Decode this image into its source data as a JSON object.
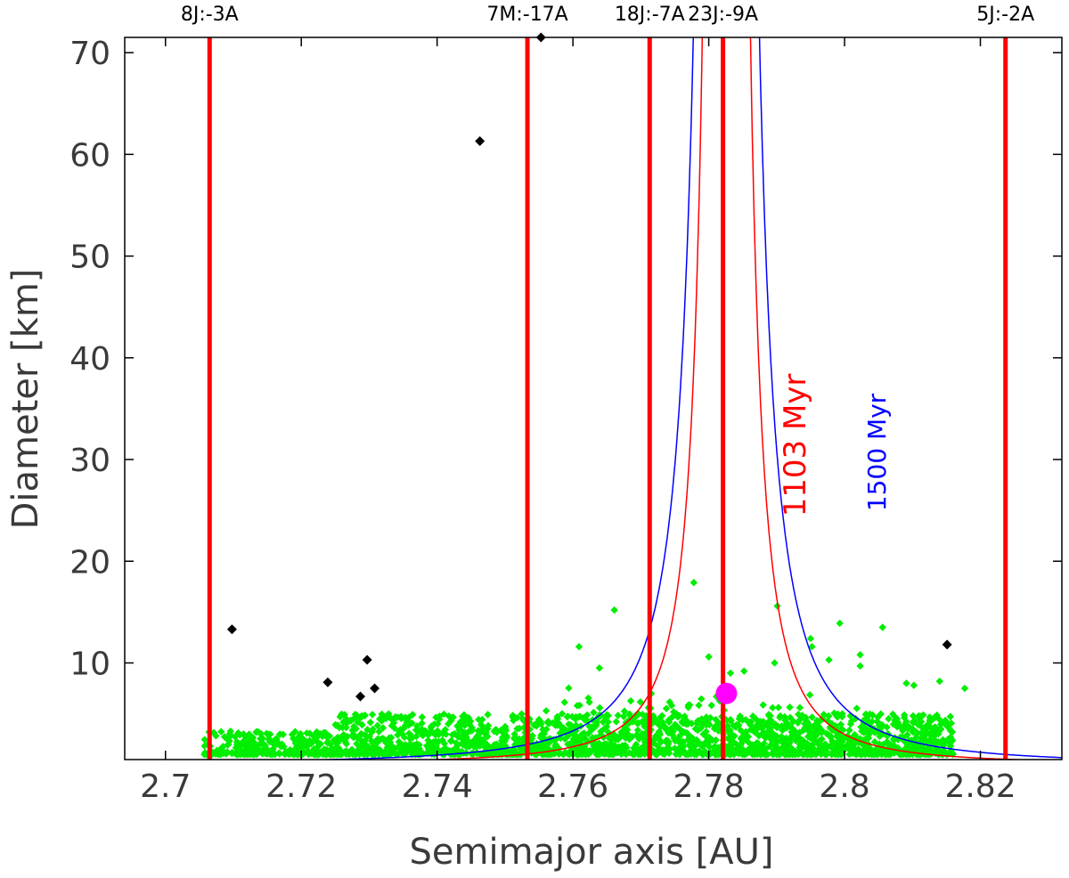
{
  "chart_data": {
    "type": "scatter",
    "title": "",
    "xlabel": "Semimajor axis [AU]",
    "ylabel": "Diameter [km]",
    "xlim": [
      2.694,
      2.832
    ],
    "ylim": [
      0.5,
      71.5
    ],
    "xticks": [
      2.7,
      2.72,
      2.74,
      2.76,
      2.78,
      2.8,
      2.82
    ],
    "xtick_labels": [
      "2.7",
      "2.72",
      "2.74",
      "2.76",
      "2.78",
      "2.8",
      "2.82"
    ],
    "yticks": [
      10,
      20,
      30,
      40,
      50,
      60,
      70
    ],
    "ytick_labels": [
      "10",
      "20",
      "30",
      "40",
      "50",
      "60",
      "70"
    ],
    "resonances": [
      {
        "label": "8J:-3A",
        "a": 2.7065
      },
      {
        "label": "7M:-17A",
        "a": 2.7533
      },
      {
        "label": "18J:-7A",
        "a": 2.7713
      },
      {
        "label": "23J:-9A",
        "a": 2.7821
      },
      {
        "label": "5J:-2A",
        "a": 2.8237
      }
    ],
    "curves": [
      {
        "name": "1103 Myr",
        "label": "1103 Myr",
        "color": "#ff0000",
        "center": 2.7826,
        "C": 0.03
      },
      {
        "name": "1500 Myr",
        "label": "1500 Myr",
        "color": "#0000ff",
        "center": 2.7826,
        "C": 0.0412
      }
    ],
    "parent_body": {
      "name": "parent body",
      "a": 2.7826,
      "D": 7.0,
      "color": "#ff00ff"
    },
    "interlopers": {
      "name": "interlopers",
      "color": "#000000",
      "points": [
        [
          2.7098,
          13.3
        ],
        [
          2.7239,
          8.1
        ],
        [
          2.7287,
          6.7
        ],
        [
          2.7297,
          10.3
        ],
        [
          2.7308,
          7.5
        ],
        [
          2.7463,
          61.3
        ],
        [
          2.7553,
          71.5
        ],
        [
          2.8151,
          11.8
        ]
      ]
    },
    "family": {
      "name": "family members",
      "color": "#00ee00",
      "sample_points": [
        [
          2.7778,
          17.9
        ],
        [
          2.7661,
          15.2
        ],
        [
          2.7901,
          15.6
        ],
        [
          2.795,
          12.4
        ],
        [
          2.7993,
          13.9
        ],
        [
          2.8056,
          13.5
        ],
        [
          2.7609,
          11.6
        ],
        [
          2.7952,
          11.6
        ],
        [
          2.8023,
          10.8
        ],
        [
          2.7977,
          10.3
        ],
        [
          2.7897,
          10.0
        ],
        [
          2.7832,
          9.0
        ],
        [
          2.7639,
          9.5
        ],
        [
          2.8023,
          9.7
        ],
        [
          2.8091,
          8.0
        ],
        [
          2.8102,
          7.8
        ],
        [
          2.814,
          8.2
        ],
        [
          2.8177,
          7.5
        ],
        [
          2.78,
          10.6
        ],
        [
          2.7852,
          9.2
        ]
      ],
      "a_range": [
        2.7055,
        2.816
      ],
      "count": 2300,
      "seed": 12345
    },
    "grid": false,
    "legend": "none"
  }
}
